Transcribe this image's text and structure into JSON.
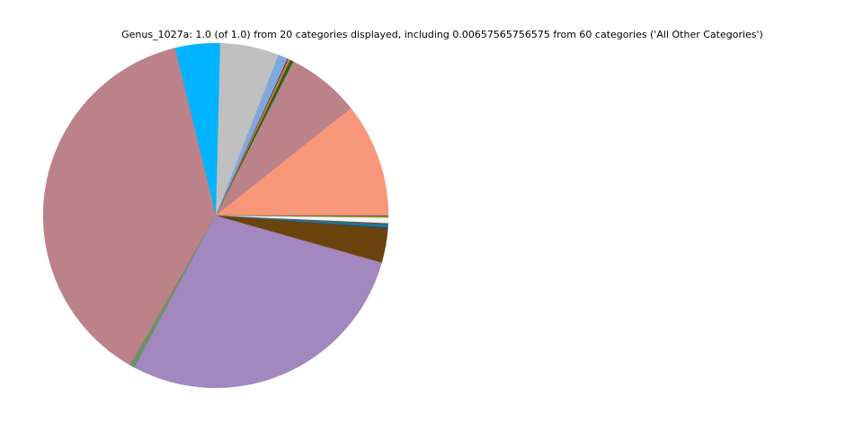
{
  "chart_data": {
    "type": "pie",
    "title": "Genus_1027a: 1.0 (of 1.0) from 20 categories displayed, including 0.00657565756575 from 60 categories ('All Other Categories')",
    "categories": [
      null,
      null,
      null,
      null,
      null,
      null,
      null,
      null,
      null,
      null,
      null,
      null,
      null,
      null,
      null,
      null,
      null,
      null,
      null,
      null
    ],
    "values": [
      0.107,
      0.068,
      0.001,
      0.003,
      0.002,
      0.001,
      0.009,
      0.055,
      0.042,
      0.379,
      0.004,
      0.001,
      0.284,
      0.032,
      0.001,
      0.003,
      0.001,
      0.005,
      0.001,
      0.001
    ],
    "colors": [
      "#f8967a",
      "#bc8289",
      "#8b8b8b",
      "#2e5e1a",
      "#e07b1a",
      "#3a3a8a",
      "#80a8dc",
      "#c0c0c0",
      "#00b4ff",
      "#bc8289",
      "#7a8a6a",
      "#40a060",
      "#a387bf",
      "#6b430d",
      "#204080",
      "#1a7a8a",
      "#903030",
      "#e8f8fa",
      "#c8a000",
      "#606060"
    ],
    "start_angle": 0,
    "counterclock": true
  }
}
